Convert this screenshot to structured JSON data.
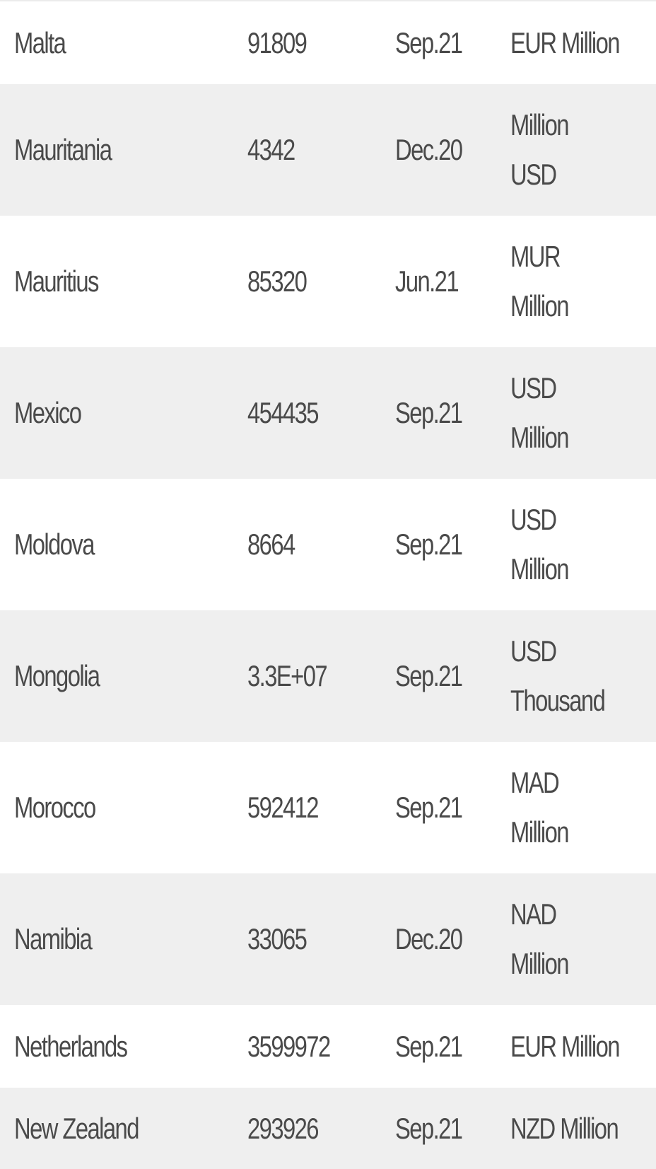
{
  "table": {
    "rows": [
      {
        "country": "Malta",
        "value": "91809",
        "date": "Sep.21",
        "unit": "EUR Million"
      },
      {
        "country": "Mauritania",
        "value": "4342",
        "date": "Dec.20",
        "unit": "Million USD"
      },
      {
        "country": "Mauritius",
        "value": "85320",
        "date": "Jun.21",
        "unit": "MUR Million"
      },
      {
        "country": "Mexico",
        "value": "454435",
        "date": "Sep.21",
        "unit": "USD Million"
      },
      {
        "country": "Moldova",
        "value": "8664",
        "date": "Sep.21",
        "unit": "USD Million"
      },
      {
        "country": "Mongolia",
        "value": "3.3E+07",
        "date": "Sep.21",
        "unit": "USD Thousand"
      },
      {
        "country": "Morocco",
        "value": "592412",
        "date": "Sep.21",
        "unit": "MAD Million"
      },
      {
        "country": "Namibia",
        "value": "33065",
        "date": "Dec.20",
        "unit": "NAD Million"
      },
      {
        "country": "Netherlands",
        "value": "3599972",
        "date": "Sep.21",
        "unit": "EUR Million"
      },
      {
        "country": "New Zealand",
        "value": "293926",
        "date": "Sep.21",
        "unit": "NZD Million"
      }
    ]
  }
}
